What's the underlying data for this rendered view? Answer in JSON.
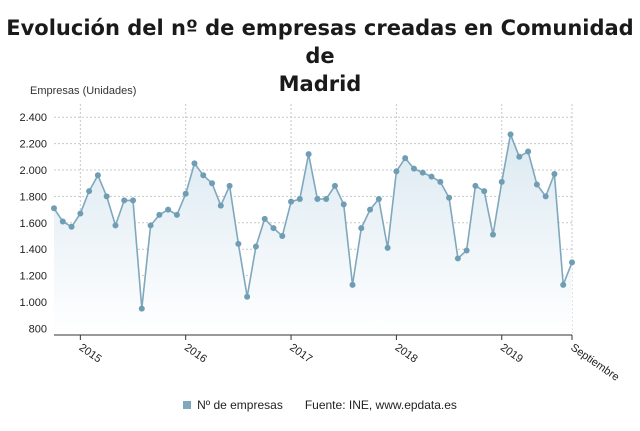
{
  "title_line1": "Evolución del nº de empresas creadas en Comunidad de",
  "title_line2": "Madrid",
  "legend_label": "Nº de empresas",
  "source": "Fuente: INE, www.epdata.es",
  "colors": {
    "line": "#7fa8bd",
    "marker": "#6f9db3",
    "area_top": "#dbe9f1",
    "area_bottom": "#ffffff",
    "grid": "#c8c8c8"
  },
  "chart_data": {
    "type": "area",
    "title": "Evolución del nº de empresas creadas en Comunidad de Madrid",
    "ylabel": "Empresas (Unidades)",
    "ylim": [
      750,
      2500
    ],
    "yticks": [
      800,
      1000,
      1200,
      1400,
      1600,
      1800,
      2000,
      2200,
      2400
    ],
    "ytick_labels": [
      "800",
      "1.000",
      "1.200",
      "1.400",
      "1.600",
      "1.800",
      "2.000",
      "2.200",
      "2.400"
    ],
    "xticks": [
      {
        "label": "2015",
        "month": 3
      },
      {
        "label": "2016",
        "month": 15
      },
      {
        "label": "2017",
        "month": 27
      },
      {
        "label": "2018",
        "month": 39
      },
      {
        "label": "2019",
        "month": 51
      },
      {
        "label": "Septiembre",
        "month": 59
      }
    ],
    "grid": true,
    "legend_position": "bottom",
    "series": [
      {
        "name": "Nº de empresas",
        "x": [
          "2014-10",
          "2014-11",
          "2014-12",
          "2015-01",
          "2015-02",
          "2015-03",
          "2015-04",
          "2015-05",
          "2015-06",
          "2015-07",
          "2015-08",
          "2015-09",
          "2015-10",
          "2015-11",
          "2015-12",
          "2016-01",
          "2016-02",
          "2016-03",
          "2016-04",
          "2016-05",
          "2016-06",
          "2016-07",
          "2016-08",
          "2016-09",
          "2016-10",
          "2016-11",
          "2016-12",
          "2017-01",
          "2017-02",
          "2017-03",
          "2017-04",
          "2017-05",
          "2017-06",
          "2017-07",
          "2017-08",
          "2017-09",
          "2017-10",
          "2017-11",
          "2017-12",
          "2018-01",
          "2018-02",
          "2018-03",
          "2018-04",
          "2018-05",
          "2018-06",
          "2018-07",
          "2018-08",
          "2018-09",
          "2018-10",
          "2018-11",
          "2018-12",
          "2019-01",
          "2019-02",
          "2019-03",
          "2019-04",
          "2019-05",
          "2019-06",
          "2019-07",
          "2019-08",
          "2019-09"
        ],
        "values": [
          1710,
          1610,
          1570,
          1670,
          1840,
          1960,
          1800,
          1580,
          1770,
          1770,
          950,
          1580,
          1660,
          1700,
          1660,
          1820,
          2050,
          1960,
          1900,
          1730,
          1880,
          1440,
          1040,
          1420,
          1630,
          1560,
          1500,
          1760,
          1780,
          2120,
          1780,
          1780,
          1880,
          1740,
          1130,
          1560,
          1700,
          1780,
          1410,
          1990,
          2090,
          2010,
          1980,
          1950,
          1910,
          1790,
          1330,
          1390,
          1880,
          1840,
          1510,
          1910,
          2270,
          2100,
          2140,
          1890,
          1800,
          1970,
          1130,
          1300
        ]
      }
    ]
  }
}
